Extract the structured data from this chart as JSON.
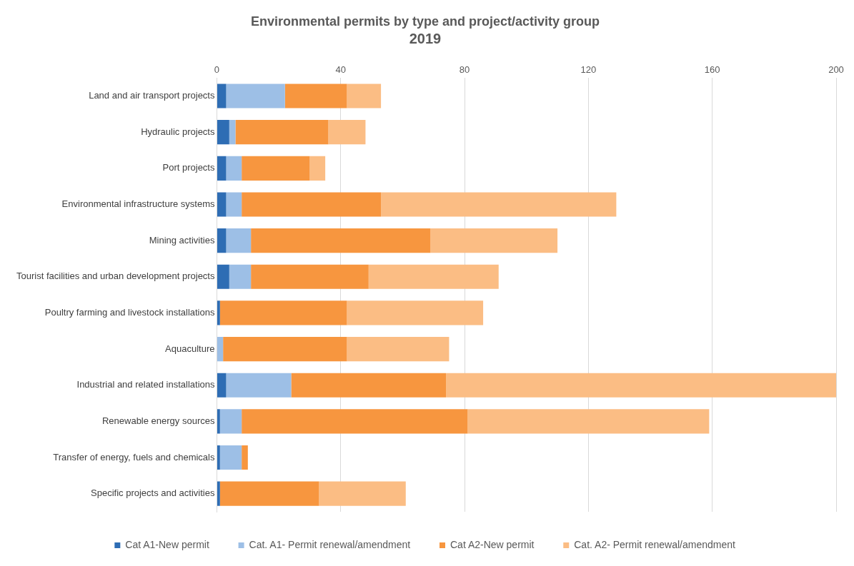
{
  "chart_data": {
    "type": "bar",
    "orientation": "horizontal",
    "stacked": true,
    "title": "Environmental permits by type and project/activity group",
    "subtitle": "2019",
    "categories": [
      "Land and air transport projects",
      "Hydraulic projects",
      "Port projects",
      "Environmental infrastructure systems",
      "Mining activities",
      "Tourist facilities and urban development projects",
      "Poultry farming and livestock installations",
      "Aquaculture",
      "Industrial and related installations",
      "Renewable energy sources",
      "Transfer of energy, fuels and chemicals",
      "Specific projects and activities"
    ],
    "series": [
      {
        "name": "Cat A1-New permit",
        "color": "#2e6db4",
        "values": [
          3,
          4,
          3,
          3,
          3,
          4,
          1,
          0,
          3,
          1,
          1,
          1
        ]
      },
      {
        "name": "Cat. A1- Permit renewal/amendment",
        "color": "#9dbfe6",
        "values": [
          19,
          2,
          5,
          5,
          8,
          7,
          0,
          2,
          21,
          7,
          7,
          0
        ]
      },
      {
        "name": "Cat A2-New permit",
        "color": "#f7963f",
        "values": [
          20,
          30,
          22,
          45,
          58,
          38,
          41,
          40,
          50,
          73,
          2,
          32
        ]
      },
      {
        "name": "Cat. A2- Permit renewal/amendment",
        "color": "#fbbd84",
        "values": [
          11,
          12,
          5,
          76,
          41,
          42,
          44,
          33,
          126,
          78,
          0,
          28
        ]
      }
    ],
    "xlim": [
      0,
      200
    ],
    "xticks": [
      0,
      40,
      80,
      120,
      160,
      200
    ],
    "grid": "x",
    "legend": "bottom"
  }
}
